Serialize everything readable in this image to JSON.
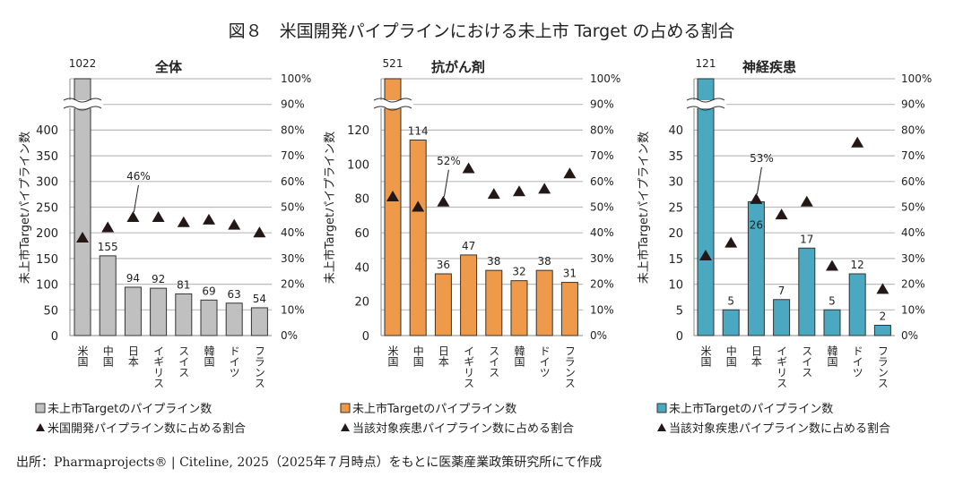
{
  "title": "図８　米国開発パイプラインにおける未上市 Target の占める割合",
  "footnote": "出所：Pharmaprojects® | Citeline, 2025（2025年７月時点）をもとに医薬産業政策研究所にて作成",
  "chart_data": [
    {
      "type": "bar",
      "title": "全体",
      "color": "#c0c0c0",
      "categories": [
        "米国",
        "中国",
        "日本",
        "イギリス",
        "スイス",
        "韓国",
        "ドイツ",
        "フランス"
      ],
      "ylabel": "未上市Targetパイプライン数",
      "ylim": [
        0,
        400
      ],
      "yticks": [
        "0",
        "50",
        "100",
        "150",
        "200",
        "250",
        "300",
        "350",
        "400"
      ],
      "y2ticks": [
        "0%",
        "10%",
        "20%",
        "30%",
        "40%",
        "50%",
        "60%",
        "70%",
        "80%",
        "90%",
        "100%"
      ],
      "axis_break": true,
      "series": [
        {
          "name": "未上市Targetのパイプライン数",
          "kind": "bar",
          "values": [
            1022,
            155,
            94,
            92,
            81,
            69,
            63,
            54
          ],
          "labels": [
            "1022",
            "155",
            "94",
            "92",
            "81",
            "69",
            "63",
            "54"
          ]
        },
        {
          "name": "米国開発パイプライン数に占める割合",
          "kind": "marker",
          "axis": "right",
          "values": [
            38,
            42,
            46,
            46,
            44,
            45,
            43,
            40
          ]
        }
      ],
      "annotation": {
        "category": "日本",
        "text": "46%"
      },
      "legend": [
        "未上市Targetのパイプライン数",
        "米国開発パイプライン数に占める割合"
      ]
    },
    {
      "type": "bar",
      "title": "抗がん剤",
      "color": "#ef9a4a",
      "categories": [
        "米国",
        "中国",
        "日本",
        "イギリス",
        "スイス",
        "韓国",
        "ドイツ",
        "フランス"
      ],
      "ylabel": "未上市Targetパイプライン数",
      "ylim": [
        0,
        120
      ],
      "yticks": [
        "0",
        "20",
        "40",
        "60",
        "80",
        "100",
        "120"
      ],
      "y2ticks": [
        "0%",
        "10%",
        "20%",
        "30%",
        "40%",
        "50%",
        "60%",
        "70%",
        "80%",
        "90%",
        "100%"
      ],
      "axis_break": true,
      "series": [
        {
          "name": "未上市Targetのパイプライン数",
          "kind": "bar",
          "values": [
            521,
            114,
            36,
            47,
            38,
            32,
            38,
            31
          ],
          "labels": [
            "521",
            "114",
            "36",
            "47",
            "38",
            "32",
            "38",
            "31"
          ]
        },
        {
          "name": "当該対象疾患パイプライン数に占める割合",
          "kind": "marker",
          "axis": "right",
          "values": [
            54,
            50,
            52,
            65,
            55,
            56,
            57,
            63
          ]
        }
      ],
      "annotation": {
        "category": "日本",
        "text": "52%"
      },
      "legend": [
        "未上市Targetのパイプライン数",
        "当該対象疾患パイプライン数に占める割合"
      ]
    },
    {
      "type": "bar",
      "title": "神経疾患",
      "color": "#4aa8c0",
      "categories": [
        "米国",
        "中国",
        "日本",
        "イギリス",
        "スイス",
        "韓国",
        "ドイツ",
        "フランス"
      ],
      "ylabel": "未上市Targetパイプライン数",
      "ylim": [
        0,
        40
      ],
      "yticks": [
        "0",
        "5",
        "10",
        "15",
        "20",
        "25",
        "30",
        "35",
        "40"
      ],
      "y2ticks": [
        "0%",
        "10%",
        "20%",
        "30%",
        "40%",
        "50%",
        "60%",
        "70%",
        "80%",
        "90%",
        "100%"
      ],
      "axis_break": true,
      "series": [
        {
          "name": "未上市Targetのパイプライン数",
          "kind": "bar",
          "values": [
            121,
            5,
            26,
            7,
            17,
            5,
            12,
            2
          ],
          "labels": [
            "121",
            "5",
            "26",
            "7",
            "17",
            "5",
            "12",
            "2"
          ]
        },
        {
          "name": "当該対象疾患パイプライン数に占める割合",
          "kind": "marker",
          "axis": "right",
          "values": [
            31,
            36,
            53,
            47,
            52,
            27,
            75,
            18
          ]
        }
      ],
      "annotation": {
        "category": "日本",
        "text": "53%"
      },
      "legend": [
        "未上市Targetのパイプライン数",
        "当該対象疾患パイプライン数に占める割合"
      ]
    }
  ]
}
